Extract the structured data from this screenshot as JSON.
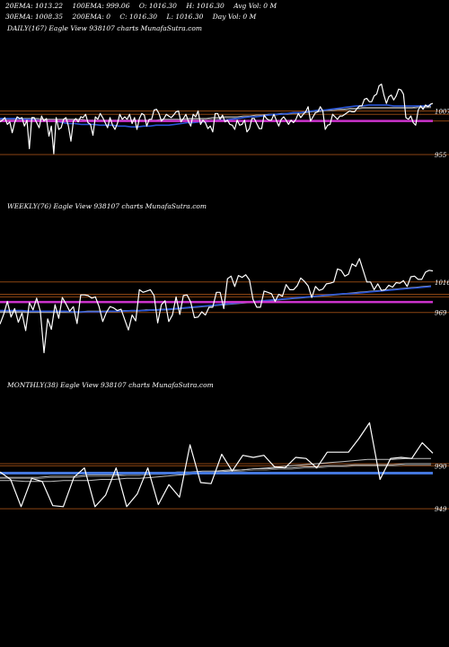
{
  "header": {
    "row1": [
      "20EMA: 1013.22",
      "100EMA: 999.06",
      "O: 1016.30",
      "H: 1016.30",
      "Avg Vol: 0  M"
    ],
    "row2": [
      "30EMA: 1008.35",
      "200EMA: 0",
      "C: 1016.30",
      "L: 1016.30",
      "Day Vol: 0  M"
    ]
  },
  "colors": {
    "price": "#ffffff",
    "ema_fast": "#2a55d6",
    "ema_slow": "#bfbfbf",
    "level": "#8b4513",
    "pivot": "#cc33cc",
    "monthly_ma": "#4477dd"
  },
  "chart_data": [
    {
      "type": "line",
      "title": "DAILY(167) Eagle  View  938107 charts MunafaSutra.com",
      "ylim": [
        925,
        1045
      ],
      "yticks": [
        1007,
        955
      ],
      "hlines": [
        1007,
        1003,
        995,
        955
      ],
      "pivot": 995,
      "series": [
        {
          "values": [
            994,
            996,
            999,
            991,
            994,
            981,
            993,
            1000,
            998,
            999,
            989,
            996,
            962,
            999,
            999,
            993,
            987,
            1001,
            995,
            998,
            977,
            989,
            956,
            999,
            985,
            987,
            997,
            999,
            989,
            971,
            995,
            998,
            994,
            1000,
            999,
            1003,
            993,
            991,
            978,
            1000,
            997,
            1004,
            999,
            993,
            987,
            999,
            990,
            985,
            992,
            1003,
            997,
            1000,
            997,
            1003,
            992,
            999,
            985,
            998,
            1004,
            1002,
            989,
            997,
            997,
            1008,
            1009,
            1004,
            995,
            998,
            1003,
            1001,
            999,
            1002,
            1006,
            1007,
            994,
            998,
            1003,
            995,
            989,
            1003,
            1000,
            1007,
            991,
            996,
            993,
            986,
            989,
            982,
            1004,
            1004,
            997,
            1002,
            994,
            996,
            991,
            990,
            985,
            996,
            990,
            991,
            996,
            982,
            986,
            998,
            998,
            992,
            986,
            986,
            1002,
            998,
            996,
            996,
            1003,
            996,
            989,
            997,
            1000,
            996,
            991,
            996,
            993,
            997,
            1004,
            999,
            1003,
            1006,
            1012,
            995,
            1000,
            1005,
            1006,
            1012,
            1007,
            985,
            990,
            991,
            1003,
            1000,
            997,
            1001,
            1001,
            1003,
            1005,
            1007,
            1006,
            1006,
            1010,
            1013,
            1013,
            1021,
            1022,
            1018,
            1018,
            1025,
            1027,
            1037,
            1039,
            1026,
            1016,
            1024,
            1026,
            1020,
            1025,
            1033,
            1032,
            1027,
            999,
            997,
            1001,
            993,
            990,
            1008,
            1013,
            1009,
            1014,
            1012,
            1015,
            1016
          ]
        },
        {
          "values": [
            998,
            998,
            998,
            998,
            997,
            997,
            996,
            995,
            995,
            995,
            993,
            992,
            992,
            991,
            991,
            991,
            990,
            990,
            990,
            989,
            989,
            988,
            988,
            989,
            989,
            990,
            990,
            990,
            991,
            992,
            993,
            993,
            994,
            994,
            995,
            996,
            996,
            997,
            998,
            999,
            1000,
            1000,
            1001,
            1002,
            1003,
            1003,
            1004,
            1005,
            1005,
            1006,
            1007,
            1008,
            1008,
            1009,
            1010,
            1011,
            1012,
            1013,
            1013,
            1014,
            1014,
            1014,
            1014,
            1013,
            1013,
            1013,
            1013,
            1013,
            1013,
            1014
          ]
        },
        {
          "values": [
            998,
            998,
            998,
            998,
            998,
            998,
            998,
            997,
            997,
            997,
            997,
            997,
            997,
            997,
            996,
            996,
            996,
            996,
            996,
            996,
            996,
            996,
            996,
            996,
            996,
            996,
            997,
            997,
            997,
            997,
            998,
            998,
            998,
            998,
            999,
            999,
            1000,
            1000,
            1000,
            1001,
            1001,
            1002,
            1002,
            1003,
            1003,
            1004,
            1004,
            1005,
            1005,
            1006,
            1007,
            1007,
            1008,
            1008,
            1009,
            1009,
            1010,
            1010,
            1011,
            1011,
            1011,
            1011,
            1011,
            1011,
            1011,
            1011,
            1011,
            1012,
            1012,
            1012
          ]
        }
      ]
    },
    {
      "type": "line",
      "title": "WEEKLY(76) Eagle  View  938107 charts MunafaSutra.com",
      "ylim": [
        880,
        1060
      ],
      "yticks": [
        1016,
        969
      ],
      "hlines": [
        1016,
        997,
        993,
        969
      ],
      "pivot": 985,
      "series": [
        {
          "values": [
            951,
            966,
            986,
            962,
            975,
            954,
            968,
            941,
            984,
            973,
            991,
            971,
            907,
            959,
            943,
            981,
            960,
            992,
            982,
            971,
            978,
            952,
            996,
            996,
            995,
            991,
            993,
            978,
            955,
            969,
            978,
            976,
            972,
            974,
            958,
            942,
            965,
            956,
            1004,
            1000,
            1002,
            1004,
            995,
            953,
            981,
            987,
            955,
            965,
            993,
            966,
            995,
            996,
            985,
            961,
            962,
            970,
            965,
            977,
            977,
            1000,
            1000,
            975,
            1021,
            1025,
            1009,
            1026,
            1023,
            1027,
            1019,
            989,
            977,
            977,
            1002,
            1000,
            998,
            986,
            997,
            994,
            1012,
            1004,
            1004,
            1010,
            1022,
            1017,
            1010,
            992,
            1009,
            1003,
            1005,
            1013,
            1014,
            1016,
            1036,
            1034,
            1025,
            1028,
            1044,
            1040,
            1052,
            1034,
            1016,
            1016,
            1004,
            1013,
            1003,
            1004,
            1011,
            1008,
            1015,
            1014,
            1018,
            1009,
            1024,
            1025,
            1020,
            1020,
            1031,
            1034,
            1033
          ]
        },
        {
          "values": [
            972,
            972,
            972,
            972,
            971,
            971,
            971,
            971,
            971,
            971,
            970,
            970,
            970,
            970,
            970,
            971,
            971,
            971,
            972,
            972,
            972,
            973,
            973,
            974,
            975,
            976,
            977,
            978,
            979,
            980,
            981,
            982,
            983,
            984,
            985,
            986,
            987,
            988,
            989,
            990,
            991,
            992,
            993,
            994,
            995,
            996,
            997,
            998,
            998,
            999,
            1000,
            1001,
            1002,
            1003,
            1004,
            1005,
            1006,
            1007,
            1008,
            1009
          ]
        },
        {
          "values": [
            970,
            970,
            970,
            970,
            970,
            970,
            970,
            970,
            970,
            970,
            970,
            970,
            971,
            971,
            971,
            971,
            971,
            972,
            972,
            972,
            973,
            973,
            974,
            974,
            975,
            976,
            977,
            978,
            979,
            980,
            981,
            982,
            983,
            984,
            985,
            986,
            987,
            988,
            989,
            990,
            991,
            992,
            993,
            994,
            995,
            996,
            997,
            998,
            999,
            1000,
            1001,
            1002,
            1003,
            1004,
            1005,
            1006,
            1007,
            1008,
            1009,
            1010
          ]
        }
      ]
    },
    {
      "type": "line",
      "title": "MONTHLY(38) Eagle  View  938107 charts MunafaSutra.com",
      "ylim": [
        920,
        1040
      ],
      "yticks": [
        990,
        949
      ],
      "hlines": [
        992,
        990,
        949
      ],
      "pivot": 983,
      "series": [
        {
          "values": [
            984,
            977,
            951,
            978,
            975,
            952,
            951,
            979,
            988,
            951,
            962,
            988,
            951,
            963,
            988,
            953,
            972,
            960,
            1010,
            974,
            973,
            1001,
            985,
            1000,
            998,
            1000,
            989,
            988,
            998,
            997,
            988,
            1003,
            1003,
            1003,
            1016,
            1031,
            977,
            997,
            998,
            997,
            1012,
            1002
          ]
        },
        {
          "values": [
            976,
            976,
            975,
            975,
            975,
            976,
            976,
            976,
            977,
            977,
            978,
            978,
            979,
            980,
            981,
            982,
            983,
            984,
            985,
            986,
            987,
            988,
            989,
            990,
            991,
            992,
            993,
            994,
            995,
            996,
            996,
            996,
            997,
            997,
            997
          ]
        },
        {
          "values": [
            979,
            979,
            979,
            979,
            980,
            980,
            980,
            981,
            981,
            981,
            982,
            982,
            983,
            983,
            984,
            984,
            985,
            985,
            986,
            986,
            987,
            987,
            988,
            988,
            989,
            989,
            990,
            990,
            991,
            991,
            991,
            991,
            992,
            992,
            992
          ]
        }
      ]
    }
  ]
}
